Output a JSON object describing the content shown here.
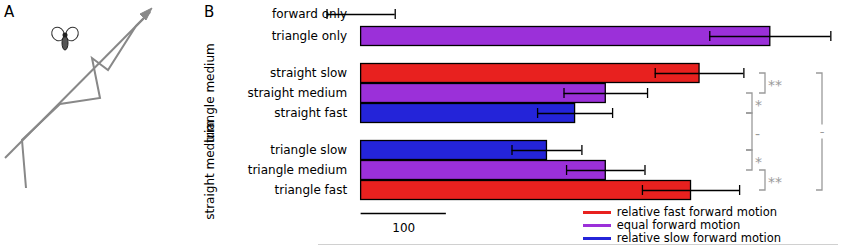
{
  "chart_data": {
    "type": "bar",
    "orientation": "horizontal",
    "panel_labels": [
      "A",
      "B"
    ],
    "categories": [
      "forward only",
      "triangle only",
      "straight slow",
      "straight medium",
      "straight fast",
      "triangle slow",
      "triangle medium",
      "triangle fast"
    ],
    "values": [
      0,
      480,
      397,
      287,
      251,
      218,
      287,
      387
    ],
    "errors": [
      40,
      71,
      52,
      49,
      44,
      41,
      46,
      57
    ],
    "colors": [
      "#000000",
      "#9b30d9",
      "#e8211f",
      "#9b30d9",
      "#2424d9",
      "#2424d9",
      "#9b30d9",
      "#e8211f"
    ],
    "groups": [
      {
        "label": "triangle medium",
        "members": [
          "straight slow",
          "straight medium",
          "straight fast"
        ]
      },
      {
        "label": "straight medium",
        "members": [
          "triangle slow",
          "triangle medium",
          "triangle fast"
        ]
      }
    ],
    "significance": [
      {
        "from": "straight slow",
        "to": "straight medium",
        "label": "**"
      },
      {
        "from": "straight medium",
        "to": "straight fast",
        "label": "*"
      },
      {
        "from": "triangle slow",
        "to": "triangle medium",
        "label": "*"
      },
      {
        "from": "triangle medium",
        "to": "triangle fast",
        "label": "**"
      },
      {
        "from": "straight fast",
        "to": "triangle slow",
        "label": "-"
      },
      {
        "from": "straight slow",
        "to": "triangle fast",
        "label": "-"
      }
    ],
    "scale_bar": 100,
    "legend_items": [
      {
        "name": "relative fast forward motion",
        "color": "#e8211f"
      },
      {
        "name": "equal forward motion",
        "color": "#9b30d9"
      },
      {
        "name": "relative slow forward motion",
        "color": "#2424d9"
      }
    ],
    "legend": "lower right",
    "xlim": [
      -50,
      560
    ],
    "xticks": [],
    "tick_labels": false
  }
}
